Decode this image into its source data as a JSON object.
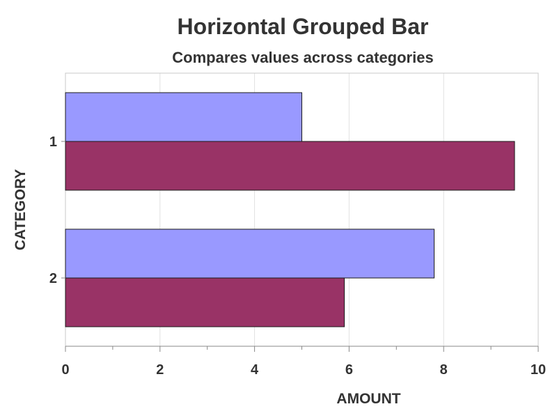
{
  "chart_data": {
    "type": "bar",
    "orientation": "horizontal",
    "title": "Horizontal Grouped Bar",
    "subtitle": "Compares values across categories",
    "xlabel": "AMOUNT",
    "ylabel": "CATEGORY",
    "categories": [
      "1",
      "2"
    ],
    "xlim": [
      0,
      10
    ],
    "xticks": [
      0,
      2,
      4,
      6,
      8,
      10
    ],
    "grid": true,
    "series": [
      {
        "color": "#9999FF",
        "values": [
          5,
          7.8
        ]
      },
      {
        "color": "#993366",
        "values": [
          9.5,
          5.9
        ]
      }
    ]
  }
}
